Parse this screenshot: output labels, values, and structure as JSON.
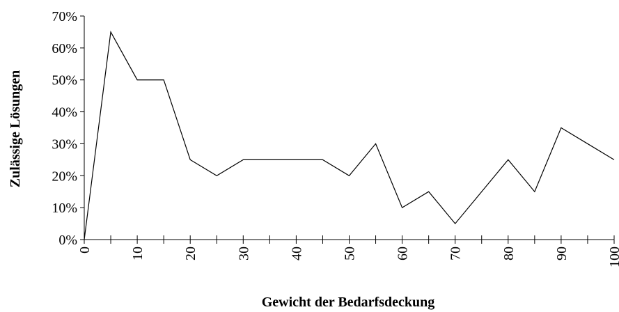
{
  "chart_data": {
    "type": "line",
    "xlabel": "Gewicht der Bedarfsdeckung",
    "ylabel": "Zulässige Lösungen",
    "x": [
      0,
      5,
      10,
      15,
      20,
      25,
      30,
      35,
      40,
      45,
      50,
      55,
      60,
      65,
      70,
      75,
      80,
      85,
      90,
      95,
      100
    ],
    "series": [
      {
        "color": "#000000",
        "values": [
          0,
          65,
          50,
          50,
          25,
          20,
          25,
          25,
          25,
          25,
          20,
          30,
          10,
          15,
          5,
          15,
          25,
          15,
          35,
          30,
          25
        ]
      }
    ],
    "xlim": [
      0,
      100
    ],
    "xticks": [
      0,
      10,
      20,
      30,
      40,
      50,
      60,
      70,
      80,
      90,
      100
    ],
    "xminorticks": [
      5,
      15,
      25,
      35,
      45,
      55,
      65,
      75,
      85,
      95
    ],
    "ylim": [
      0,
      70
    ],
    "yticks": [
      {
        "value": 0,
        "label": "0%"
      },
      {
        "value": 10,
        "label": "10%"
      },
      {
        "value": 20,
        "label": "20%"
      },
      {
        "value": 30,
        "label": "30%"
      },
      {
        "value": 40,
        "label": "40%"
      },
      {
        "value": 50,
        "label": "50%"
      },
      {
        "value": 60,
        "label": "60%"
      },
      {
        "value": 70,
        "label": "70%"
      }
    ],
    "grid": false
  }
}
